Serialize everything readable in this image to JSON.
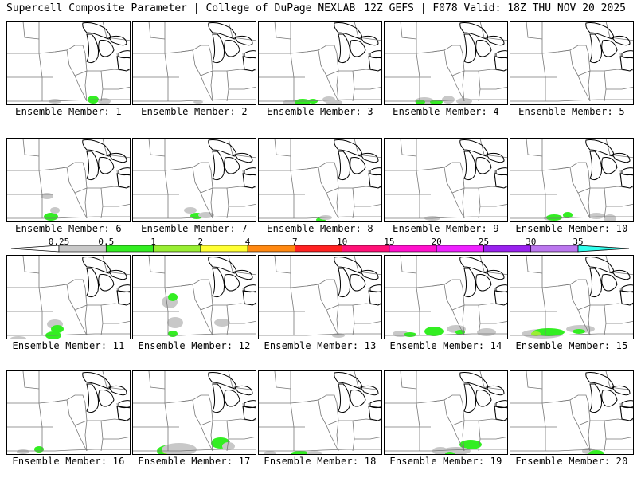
{
  "header": {
    "left": "Supercell Composite Parameter | College of DuPage NEXLAB",
    "right": "12Z GEFS | F078 Valid: 18Z THU NOV 20 2025"
  },
  "colorbar": {
    "ticks": [
      "0.25",
      "0.5",
      "1",
      "2",
      "4",
      "7",
      "10",
      "15",
      "20",
      "25",
      "30",
      "35"
    ],
    "colors": [
      "#c8c8c8",
      "#33ee22",
      "#99ee33",
      "#ffff33",
      "#ff8811",
      "#ff2222",
      "#ff1177",
      "#ff11cc",
      "#ee22ff",
      "#9922ee",
      "#bb77ee",
      "#33ffee"
    ]
  },
  "panels": [
    {
      "label": "Ensemble Member: 1"
    },
    {
      "label": "Ensemble Member: 2"
    },
    {
      "label": "Ensemble Member: 3"
    },
    {
      "label": "Ensemble Member: 4"
    },
    {
      "label": "Ensemble Member: 5"
    },
    {
      "label": "Ensemble Member: 6"
    },
    {
      "label": "Ensemble Member: 7"
    },
    {
      "label": "Ensemble Member: 8"
    },
    {
      "label": "Ensemble Member: 9"
    },
    {
      "label": "Ensemble Member: 10"
    },
    {
      "label": "Ensemble Member: 11"
    },
    {
      "label": "Ensemble Member: 12"
    },
    {
      "label": "Ensemble Member: 13"
    },
    {
      "label": "Ensemble Member: 14"
    },
    {
      "label": "Ensemble Member: 15"
    },
    {
      "label": "Ensemble Member: 16"
    },
    {
      "label": "Ensemble Member: 17"
    },
    {
      "label": "Ensemble Member: 18"
    },
    {
      "label": "Ensemble Member: 19"
    },
    {
      "label": "Ensemble Member: 20"
    }
  ]
}
